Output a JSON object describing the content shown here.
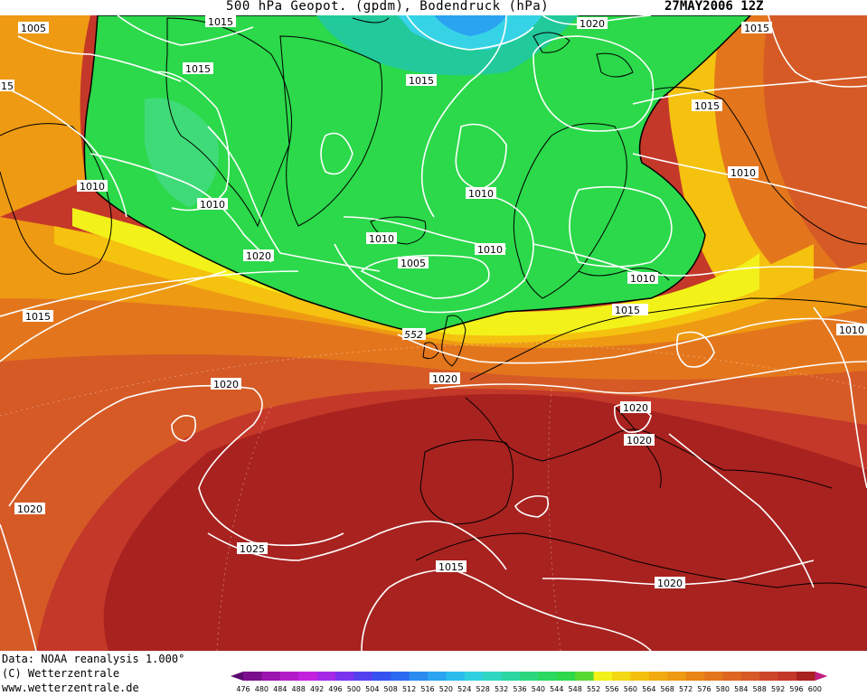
{
  "header": {
    "title": "500 hPa Geopot. (gpdm), Bodendruck (hPa)",
    "date": "27MAY2006 12Z"
  },
  "footer": {
    "source": "Data: NOAA reanalysis 1.000°",
    "copyright": "(C) Wetterzentrale",
    "website": "www.wetterzentrale.de"
  },
  "colors": {
    "green": "#2bd94a",
    "green_light": "#4fe06a",
    "teal": "#22c99a",
    "cyan": "#36d3e6",
    "blue": "#2aa3f0",
    "yellow": "#f2f21a",
    "yellow_orange": "#f5c20f",
    "orange": "#ee9a12",
    "dark_orange": "#e3761c",
    "red_orange": "#d65a26",
    "red": "#c4382a",
    "dark_red": "#a8221f",
    "isobar": "#ffffff",
    "border": "#000000"
  },
  "legend": {
    "values": [
      "476",
      "480",
      "484",
      "488",
      "492",
      "496",
      "500",
      "504",
      "508",
      "512",
      "516",
      "520",
      "524",
      "528",
      "532",
      "536",
      "540",
      "544",
      "548",
      "552",
      "556",
      "560",
      "564",
      "568",
      "572",
      "576",
      "580",
      "584",
      "588",
      "592",
      "596",
      "600"
    ],
    "colors": [
      "#5a0a6e",
      "#7a0f8e",
      "#9a14ae",
      "#b41bc8",
      "#c323de",
      "#a52ae8",
      "#7a33ee",
      "#5540f0",
      "#3552f0",
      "#2a6af0",
      "#2a8af0",
      "#2aa3f0",
      "#2bbcee",
      "#30d0e0",
      "#30d6c2",
      "#2ad6a2",
      "#2bd77e",
      "#2bd860",
      "#2dd84a",
      "#5ad832",
      "#f2f21a",
      "#f3d814",
      "#f4c00f",
      "#f1aa10",
      "#ee9a12",
      "#e98516",
      "#e3761c",
      "#dc6622",
      "#d65a26",
      "#cc4629",
      "#c4382a",
      "#a8221f",
      "#c02080"
    ]
  },
  "pressure_labels": [
    {
      "text": "1005",
      "name": "label-1005-nw"
    },
    {
      "text": "1015",
      "name": "label-1015-top"
    },
    {
      "text": "1015",
      "name": "label-1015-iceland-west"
    },
    {
      "text": "15",
      "name": "label-15-edge"
    },
    {
      "text": "1015",
      "name": "label-1015-greenland"
    },
    {
      "text": "1020",
      "name": "label-1020-north"
    },
    {
      "text": "1015",
      "name": "label-1015-ne-top"
    },
    {
      "text": "1015",
      "name": "label-1015-ne"
    },
    {
      "text": "1010",
      "name": "label-1010-west"
    },
    {
      "text": "1010",
      "name": "label-1010-greenland-south"
    },
    {
      "text": "1010",
      "name": "label-1010-norway-sea"
    },
    {
      "text": "1010",
      "name": "label-1010-russia"
    },
    {
      "text": "1010",
      "name": "label-1010-iceland"
    },
    {
      "text": "1010",
      "name": "label-1010-north-sea"
    },
    {
      "text": "1005",
      "name": "label-1005-low"
    },
    {
      "text": "1010",
      "name": "label-1010-baltic"
    },
    {
      "text": "1020",
      "name": "label-1020-atlantic-north"
    },
    {
      "text": "1015",
      "name": "label-1015-atlantic-west"
    },
    {
      "text": "552",
      "name": "label-552-contour"
    },
    {
      "text": "1015",
      "name": "label-1015-poland"
    },
    {
      "text": "1010",
      "name": "label-1010-east-edge"
    },
    {
      "text": "1020",
      "name": "label-1020-france"
    },
    {
      "text": "1020",
      "name": "label-1020-atlantic-mid"
    },
    {
      "text": "1020",
      "name": "label-1020-alps"
    },
    {
      "text": "1020",
      "name": "label-1020-italy"
    },
    {
      "text": "1020",
      "name": "label-1020-atlantic-sw"
    },
    {
      "text": "1025",
      "name": "label-1025-azores"
    },
    {
      "text": "1015",
      "name": "label-1015-africa"
    },
    {
      "text": "1020",
      "name": "label-1020-libya"
    }
  ]
}
